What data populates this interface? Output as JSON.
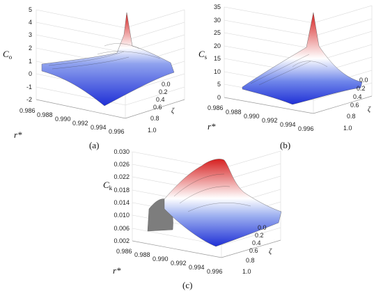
{
  "chart_data": [
    {
      "type": "surface",
      "panel_label": "(a)",
      "zlabel": {
        "main": "C",
        "sub": "o"
      },
      "xlabel": "r*",
      "ylabel": "ζ",
      "zlim": [
        -2,
        5
      ],
      "z_ticks": [
        "-2",
        "-1",
        "0",
        "1",
        "2",
        "3",
        "4",
        "5"
      ],
      "x_ticks": [
        "0.986",
        "0.988",
        "0.990",
        "0.992",
        "0.994",
        "0.996"
      ],
      "y_ticks": [
        "0.0",
        "0.2",
        "0.4",
        "0.6",
        "0.8",
        "1.0"
      ],
      "colormap": [
        "#1f2fd6",
        "#ffffff",
        "#d61f1f"
      ],
      "surface": {
        "x": [
          0.986,
          0.996
        ],
        "y": [
          0.0,
          1.0
        ],
        "peak": 4.4,
        "baseline": 0.6
      }
    },
    {
      "type": "surface",
      "panel_label": "(b)",
      "zlabel": {
        "main": "C",
        "sub": "s"
      },
      "xlabel": "r*",
      "ylabel": "ζ",
      "zlim": [
        0,
        35
      ],
      "z_ticks": [
        "0",
        "5",
        "10",
        "15",
        "20",
        "25",
        "30",
        "35"
      ],
      "x_ticks": [
        "0.986",
        "0.988",
        "0.990",
        "0.992",
        "0.994",
        "0.996"
      ],
      "y_ticks": [
        "0.0",
        "0.2",
        "0.4",
        "0.6",
        "0.8",
        "1.0"
      ],
      "colormap": [
        "#1f2fd6",
        "#ffffff",
        "#d61f1f"
      ],
      "surface": {
        "x": [
          0.986,
          0.996
        ],
        "y": [
          0.0,
          1.0
        ],
        "peak": 32,
        "baseline": 2
      }
    },
    {
      "type": "surface",
      "panel_label": "(c)",
      "zlabel": {
        "main": "C",
        "sub": "k"
      },
      "xlabel": "r*",
      "ylabel": "ζ",
      "zlim": [
        0.002,
        0.03
      ],
      "z_ticks": [
        "0.002",
        "0.006",
        "0.010",
        "0.014",
        "0.018",
        "0.022",
        "0.026",
        "0.030"
      ],
      "x_ticks": [
        "0.986",
        "0.988",
        "0.990",
        "0.992",
        "0.994",
        "0.996"
      ],
      "y_ticks": [
        "0.0",
        "0.2",
        "0.4",
        "0.6",
        "0.8",
        "1.0"
      ],
      "colormap": [
        "#1f2fd6",
        "#ffffff",
        "#d61f1f"
      ],
      "surface": {
        "x": [
          0.986,
          0.996
        ],
        "y": [
          0.0,
          1.0
        ],
        "peak": 0.0285,
        "baseline": 0.006
      }
    }
  ]
}
